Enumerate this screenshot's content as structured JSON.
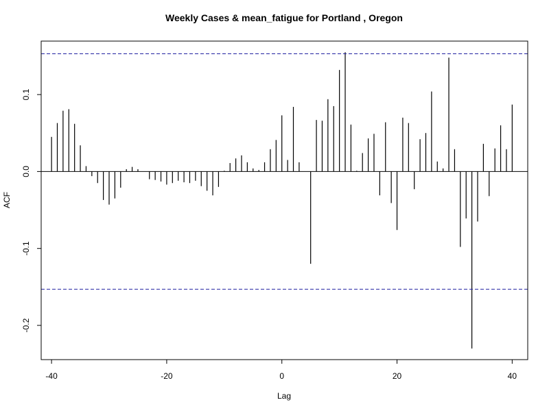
{
  "chart_data": {
    "type": "bar",
    "title": "Weekly Cases & mean_fatigue for Portland , Oregon",
    "xlabel": "Lag",
    "ylabel": "ACF",
    "xlim": [
      -41.8,
      42.7
    ],
    "ylim": [
      -0.2445,
      0.1695
    ],
    "x_ticks": [
      {
        "value": -40,
        "label": "-40"
      },
      {
        "value": -20,
        "label": "-20"
      },
      {
        "value": 0,
        "label": "0"
      },
      {
        "value": 20,
        "label": "20"
      },
      {
        "value": 40,
        "label": "40"
      }
    ],
    "y_ticks": [
      {
        "value": -0.2,
        "label": "-0.2"
      },
      {
        "value": -0.1,
        "label": "-0.1"
      },
      {
        "value": 0.0,
        "label": "0.0"
      },
      {
        "value": 0.1,
        "label": "0.1"
      }
    ],
    "confidence_bounds": [
      0.153,
      -0.153
    ],
    "confidence_color": "#1f1fa0",
    "bar_color": "#000000",
    "grid": false,
    "lags": [
      -40,
      -39,
      -38,
      -37,
      -36,
      -35,
      -34,
      -33,
      -32,
      -31,
      -30,
      -29,
      -28,
      -27,
      -26,
      -25,
      -24,
      -23,
      -22,
      -21,
      -20,
      -19,
      -18,
      -17,
      -16,
      -15,
      -14,
      -13,
      -12,
      -11,
      -10,
      -9,
      -8,
      -7,
      -6,
      -5,
      -4,
      -3,
      -2,
      -1,
      0,
      1,
      2,
      3,
      4,
      5,
      6,
      7,
      8,
      9,
      10,
      11,
      12,
      13,
      14,
      15,
      16,
      17,
      18,
      19,
      20,
      21,
      22,
      23,
      24,
      25,
      26,
      27,
      28,
      29,
      30,
      31,
      32,
      33,
      34,
      35,
      36,
      37,
      38,
      39,
      40
    ],
    "acf": [
      0.045,
      0.063,
      0.079,
      0.081,
      0.062,
      0.034,
      0.007,
      -0.006,
      -0.015,
      -0.037,
      -0.043,
      -0.035,
      -0.021,
      0.003,
      0.006,
      0.003,
      0.0,
      -0.01,
      -0.011,
      -0.013,
      -0.017,
      -0.015,
      -0.012,
      -0.014,
      -0.015,
      -0.012,
      -0.019,
      -0.025,
      -0.031,
      -0.02,
      0.001,
      0.011,
      0.017,
      0.021,
      0.012,
      0.004,
      0.002,
      0.012,
      0.029,
      0.041,
      0.073,
      0.015,
      0.084,
      0.012,
      0.0,
      -0.12,
      0.067,
      0.066,
      0.094,
      0.085,
      0.132,
      0.155,
      0.061,
      0.001,
      0.024,
      0.043,
      0.049,
      -0.031,
      0.064,
      -0.041,
      -0.076,
      0.07,
      0.063,
      -0.023,
      0.042,
      0.05,
      0.104,
      0.013,
      0.004,
      0.148,
      0.029,
      -0.098,
      -0.061,
      -0.23,
      -0.065,
      0.036,
      -0.032,
      0.03,
      0.06,
      0.029,
      0.087
    ]
  }
}
